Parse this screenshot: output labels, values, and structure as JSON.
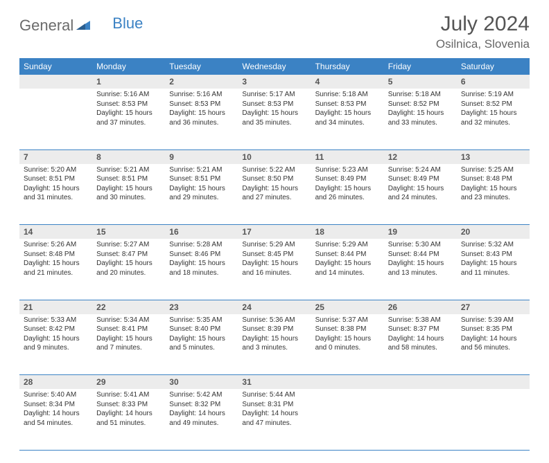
{
  "logo": {
    "text1": "General",
    "text2": "Blue"
  },
  "title": "July 2024",
  "location": "Osilnica, Slovenia",
  "colors": {
    "header_bg": "#3b82c4",
    "header_text": "#ffffff",
    "daynum_bg": "#ececec",
    "border": "#3b82c4",
    "body_text": "#333333",
    "title_text": "#555555",
    "logo_gray": "#6b6b6b",
    "logo_blue": "#3b82c4"
  },
  "typography": {
    "title_fontsize": 30,
    "location_fontsize": 17,
    "dayheader_fontsize": 12,
    "daynum_fontsize": 12,
    "content_fontsize": 10
  },
  "day_headers": [
    "Sunday",
    "Monday",
    "Tuesday",
    "Wednesday",
    "Thursday",
    "Friday",
    "Saturday"
  ],
  "weeks": [
    {
      "nums": [
        "",
        "1",
        "2",
        "3",
        "4",
        "5",
        "6"
      ],
      "cells": [
        {
          "empty": true
        },
        {
          "sunrise": "Sunrise: 5:16 AM",
          "sunset": "Sunset: 8:53 PM",
          "daylight": "Daylight: 15 hours and 37 minutes."
        },
        {
          "sunrise": "Sunrise: 5:16 AM",
          "sunset": "Sunset: 8:53 PM",
          "daylight": "Daylight: 15 hours and 36 minutes."
        },
        {
          "sunrise": "Sunrise: 5:17 AM",
          "sunset": "Sunset: 8:53 PM",
          "daylight": "Daylight: 15 hours and 35 minutes."
        },
        {
          "sunrise": "Sunrise: 5:18 AM",
          "sunset": "Sunset: 8:53 PM",
          "daylight": "Daylight: 15 hours and 34 minutes."
        },
        {
          "sunrise": "Sunrise: 5:18 AM",
          "sunset": "Sunset: 8:52 PM",
          "daylight": "Daylight: 15 hours and 33 minutes."
        },
        {
          "sunrise": "Sunrise: 5:19 AM",
          "sunset": "Sunset: 8:52 PM",
          "daylight": "Daylight: 15 hours and 32 minutes."
        }
      ]
    },
    {
      "nums": [
        "7",
        "8",
        "9",
        "10",
        "11",
        "12",
        "13"
      ],
      "cells": [
        {
          "sunrise": "Sunrise: 5:20 AM",
          "sunset": "Sunset: 8:51 PM",
          "daylight": "Daylight: 15 hours and 31 minutes."
        },
        {
          "sunrise": "Sunrise: 5:21 AM",
          "sunset": "Sunset: 8:51 PM",
          "daylight": "Daylight: 15 hours and 30 minutes."
        },
        {
          "sunrise": "Sunrise: 5:21 AM",
          "sunset": "Sunset: 8:51 PM",
          "daylight": "Daylight: 15 hours and 29 minutes."
        },
        {
          "sunrise": "Sunrise: 5:22 AM",
          "sunset": "Sunset: 8:50 PM",
          "daylight": "Daylight: 15 hours and 27 minutes."
        },
        {
          "sunrise": "Sunrise: 5:23 AM",
          "sunset": "Sunset: 8:49 PM",
          "daylight": "Daylight: 15 hours and 26 minutes."
        },
        {
          "sunrise": "Sunrise: 5:24 AM",
          "sunset": "Sunset: 8:49 PM",
          "daylight": "Daylight: 15 hours and 24 minutes."
        },
        {
          "sunrise": "Sunrise: 5:25 AM",
          "sunset": "Sunset: 8:48 PM",
          "daylight": "Daylight: 15 hours and 23 minutes."
        }
      ]
    },
    {
      "nums": [
        "14",
        "15",
        "16",
        "17",
        "18",
        "19",
        "20"
      ],
      "cells": [
        {
          "sunrise": "Sunrise: 5:26 AM",
          "sunset": "Sunset: 8:48 PM",
          "daylight": "Daylight: 15 hours and 21 minutes."
        },
        {
          "sunrise": "Sunrise: 5:27 AM",
          "sunset": "Sunset: 8:47 PM",
          "daylight": "Daylight: 15 hours and 20 minutes."
        },
        {
          "sunrise": "Sunrise: 5:28 AM",
          "sunset": "Sunset: 8:46 PM",
          "daylight": "Daylight: 15 hours and 18 minutes."
        },
        {
          "sunrise": "Sunrise: 5:29 AM",
          "sunset": "Sunset: 8:45 PM",
          "daylight": "Daylight: 15 hours and 16 minutes."
        },
        {
          "sunrise": "Sunrise: 5:29 AM",
          "sunset": "Sunset: 8:44 PM",
          "daylight": "Daylight: 15 hours and 14 minutes."
        },
        {
          "sunrise": "Sunrise: 5:30 AM",
          "sunset": "Sunset: 8:44 PM",
          "daylight": "Daylight: 15 hours and 13 minutes."
        },
        {
          "sunrise": "Sunrise: 5:32 AM",
          "sunset": "Sunset: 8:43 PM",
          "daylight": "Daylight: 15 hours and 11 minutes."
        }
      ]
    },
    {
      "nums": [
        "21",
        "22",
        "23",
        "24",
        "25",
        "26",
        "27"
      ],
      "cells": [
        {
          "sunrise": "Sunrise: 5:33 AM",
          "sunset": "Sunset: 8:42 PM",
          "daylight": "Daylight: 15 hours and 9 minutes."
        },
        {
          "sunrise": "Sunrise: 5:34 AM",
          "sunset": "Sunset: 8:41 PM",
          "daylight": "Daylight: 15 hours and 7 minutes."
        },
        {
          "sunrise": "Sunrise: 5:35 AM",
          "sunset": "Sunset: 8:40 PM",
          "daylight": "Daylight: 15 hours and 5 minutes."
        },
        {
          "sunrise": "Sunrise: 5:36 AM",
          "sunset": "Sunset: 8:39 PM",
          "daylight": "Daylight: 15 hours and 3 minutes."
        },
        {
          "sunrise": "Sunrise: 5:37 AM",
          "sunset": "Sunset: 8:38 PM",
          "daylight": "Daylight: 15 hours and 0 minutes."
        },
        {
          "sunrise": "Sunrise: 5:38 AM",
          "sunset": "Sunset: 8:37 PM",
          "daylight": "Daylight: 14 hours and 58 minutes."
        },
        {
          "sunrise": "Sunrise: 5:39 AM",
          "sunset": "Sunset: 8:35 PM",
          "daylight": "Daylight: 14 hours and 56 minutes."
        }
      ]
    },
    {
      "nums": [
        "28",
        "29",
        "30",
        "31",
        "",
        "",
        ""
      ],
      "cells": [
        {
          "sunrise": "Sunrise: 5:40 AM",
          "sunset": "Sunset: 8:34 PM",
          "daylight": "Daylight: 14 hours and 54 minutes."
        },
        {
          "sunrise": "Sunrise: 5:41 AM",
          "sunset": "Sunset: 8:33 PM",
          "daylight": "Daylight: 14 hours and 51 minutes."
        },
        {
          "sunrise": "Sunrise: 5:42 AM",
          "sunset": "Sunset: 8:32 PM",
          "daylight": "Daylight: 14 hours and 49 minutes."
        },
        {
          "sunrise": "Sunrise: 5:44 AM",
          "sunset": "Sunset: 8:31 PM",
          "daylight": "Daylight: 14 hours and 47 minutes."
        },
        {
          "empty": true
        },
        {
          "empty": true
        },
        {
          "empty": true
        }
      ]
    }
  ]
}
